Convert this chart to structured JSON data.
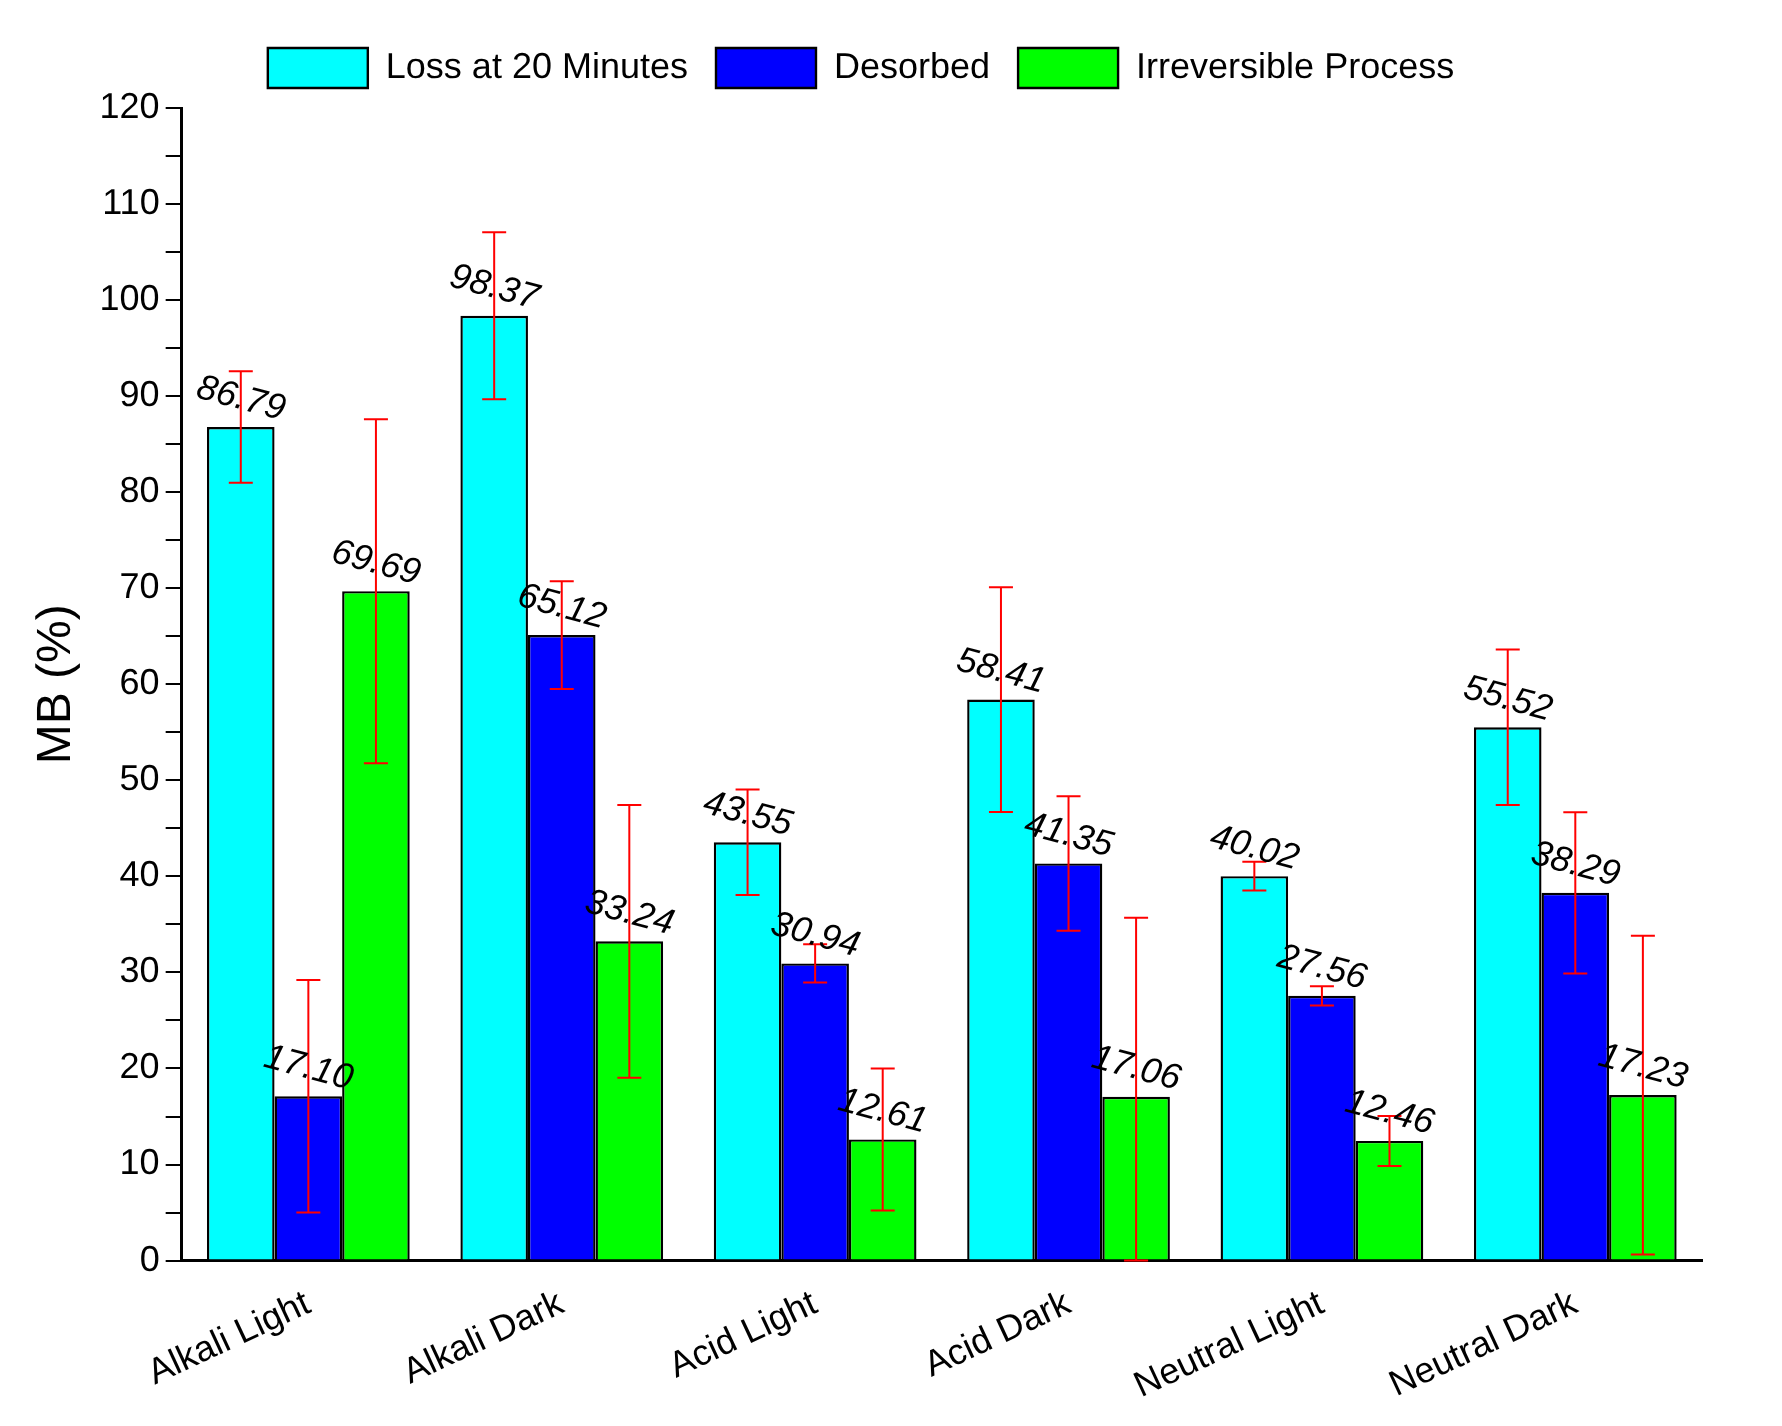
{
  "chart_data": {
    "type": "bar",
    "ylabel": "MB (%)",
    "categories": [
      "Alkali Light",
      "Alkali Dark",
      "Acid Light",
      "Acid Dark",
      "Neutral Light",
      "Neutral Dark"
    ],
    "series": [
      {
        "name": "Loss at 20 Minutes",
        "color": "#00ffff",
        "values": [
          86.79,
          98.37,
          43.55,
          58.41,
          40.02,
          55.52
        ],
        "errors": [
          5.8,
          8.7,
          5.5,
          11.7,
          1.5,
          8.1
        ],
        "value_labels": [
          "86.79",
          "98.37",
          "43.55",
          "58.41",
          "40.02",
          "55.52"
        ]
      },
      {
        "name": "Desorbed",
        "color": "#0000ff",
        "values": [
          17.1,
          65.12,
          30.94,
          41.35,
          27.56,
          38.29
        ],
        "errors": [
          12.1,
          5.6,
          2,
          7,
          1,
          8.4
        ],
        "value_labels": [
          "17.10",
          "65.12",
          "30.94",
          "41.35",
          "27.56",
          "38.29"
        ]
      },
      {
        "name": "Irreversible Process",
        "color": "#00ff00",
        "values": [
          69.69,
          33.24,
          12.61,
          17.06,
          12.46,
          17.23
        ],
        "errors": [
          17.9,
          14.2,
          7.4,
          [
            0,
            35.7
          ],
          2.6,
          16.6
        ],
        "value_labels": [
          "69.69",
          "33.24",
          "12.61",
          "17.06",
          "12.46",
          "17.23"
        ]
      }
    ],
    "ylim": [
      0,
      120
    ],
    "yticks": [
      0,
      {
        "value": 5,
        "label": null
      },
      10,
      {
        "value": 15,
        "label": null
      },
      20,
      {
        "value": 25,
        "label": null
      },
      30,
      {
        "value": 35,
        "label": null
      },
      40,
      {
        "value": 45,
        "label": null
      },
      50,
      {
        "value": 55,
        "label": null
      },
      60,
      {
        "value": 65,
        "label": null
      },
      70,
      {
        "value": 75,
        "label": null
      },
      80,
      {
        "value": 85,
        "label": null
      },
      90,
      {
        "value": 95,
        "label": null
      },
      100,
      {
        "value": 105,
        "label": null
      },
      110,
      {
        "value": 115,
        "label": null
      },
      120
    ],
    "grid": false,
    "legend": "top"
  }
}
